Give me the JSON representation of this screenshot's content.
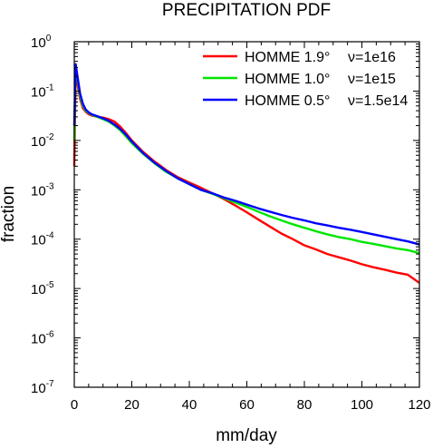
{
  "chart_data": {
    "type": "line",
    "title": "PRECIPITATION PDF",
    "xlabel": "mm/day",
    "ylabel": "fraction",
    "xlim": [
      0,
      120
    ],
    "ylim_exp": [
      -7,
      0
    ],
    "yscale": "log",
    "x_ticks": [
      0,
      20,
      40,
      60,
      80,
      100,
      120
    ],
    "x_tick_labels": [
      "0",
      "20",
      "40",
      "60",
      "80",
      "100",
      "120"
    ],
    "y_tick_exponents": [
      0,
      -1,
      -2,
      -3,
      -4,
      -5,
      -6,
      -7
    ],
    "y_tick_base": "10",
    "y_tick_exp_labels": [
      "0",
      "-1",
      "-2",
      "-3",
      "-4",
      "-5",
      "-6",
      "-7"
    ],
    "grid": false,
    "legend_position": "top-right",
    "series": [
      {
        "name": "HOMME 1.9°",
        "param": "ν=1e16",
        "color": "#ff0000",
        "x": [
          0,
          0.5,
          1,
          2,
          3,
          4,
          5,
          6,
          8,
          10,
          12,
          14,
          16,
          18,
          20,
          24,
          28,
          32,
          36,
          40,
          44,
          48,
          52,
          56,
          60,
          64,
          68,
          72,
          76,
          80,
          84,
          88,
          92,
          96,
          100,
          104,
          108,
          112,
          116,
          120
        ],
        "y": [
          0.003,
          0.25,
          0.15,
          0.07,
          0.045,
          0.038,
          0.034,
          0.032,
          0.03,
          0.029,
          0.027,
          0.024,
          0.019,
          0.014,
          0.01,
          0.0058,
          0.0037,
          0.0025,
          0.0018,
          0.0014,
          0.0011,
          0.00085,
          0.00065,
          0.00048,
          0.00035,
          0.00025,
          0.00018,
          0.00013,
          0.0001,
          7.5e-05,
          6.2e-05,
          5e-05,
          4.3e-05,
          3.7e-05,
          3.1e-05,
          2.7e-05,
          2.4e-05,
          2.1e-05,
          1.9e-05,
          1.3e-05
        ]
      },
      {
        "name": "HOMME 1.0°",
        "param": "ν=1e15",
        "color": "#00e600",
        "x": [
          0,
          0.5,
          1,
          2,
          3,
          4,
          5,
          6,
          8,
          10,
          12,
          14,
          16,
          18,
          20,
          24,
          28,
          32,
          36,
          40,
          44,
          48,
          52,
          56,
          60,
          64,
          68,
          72,
          76,
          80,
          84,
          88,
          92,
          96,
          100,
          104,
          108,
          112,
          116,
          120
        ],
        "y": [
          0.01,
          0.33,
          0.2,
          0.08,
          0.05,
          0.04,
          0.036,
          0.033,
          0.03,
          0.027,
          0.024,
          0.02,
          0.016,
          0.012,
          0.0088,
          0.0053,
          0.0034,
          0.0023,
          0.0017,
          0.0013,
          0.001,
          0.00083,
          0.00068,
          0.00055,
          0.00045,
          0.00036,
          0.00029,
          0.00024,
          0.0002,
          0.00017,
          0.000145,
          0.000125,
          0.00011,
          0.0001,
          8.8e-05,
          8e-05,
          7.2e-05,
          6.5e-05,
          6e-05,
          5.2e-05
        ]
      },
      {
        "name": "HOMME 0.5°",
        "param": "ν=1.5e14",
        "color": "#0000ff",
        "x": [
          0,
          0.5,
          1,
          2,
          3,
          4,
          5,
          6,
          8,
          10,
          12,
          14,
          16,
          18,
          20,
          24,
          28,
          32,
          36,
          40,
          44,
          48,
          52,
          56,
          60,
          64,
          68,
          72,
          76,
          80,
          84,
          88,
          92,
          96,
          100,
          104,
          108,
          112,
          116,
          120
        ],
        "y": [
          0.02,
          0.35,
          0.22,
          0.09,
          0.055,
          0.042,
          0.037,
          0.034,
          0.031,
          0.028,
          0.025,
          0.021,
          0.017,
          0.013,
          0.0095,
          0.0055,
          0.0035,
          0.0024,
          0.0017,
          0.0013,
          0.001,
          0.00085,
          0.0007,
          0.0006,
          0.0005,
          0.00042,
          0.00036,
          0.00031,
          0.00027,
          0.00024,
          0.00021,
          0.00019,
          0.00017,
          0.000155,
          0.00014,
          0.000125,
          0.000112,
          0.0001,
          9e-05,
          7.8e-05
        ]
      }
    ]
  }
}
